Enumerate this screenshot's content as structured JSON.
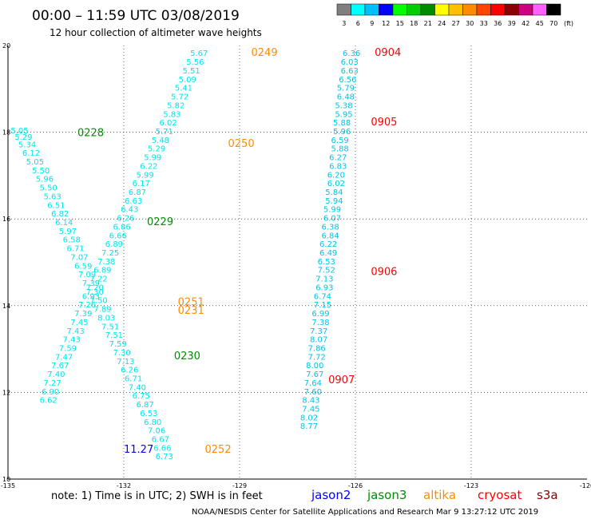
{
  "title": "00:00 – 11:59 UTC 03/08/2019",
  "subtitle": "12 hour collection of altimeter wave heights",
  "note": "note: 1) Time is in UTC; 2) SWH is in feet",
  "footer": "NOAA/NESDIS Center for Satellite Applications and Research    Mar  9 13:27:12 UTC 2019",
  "colorbar": {
    "labels": [
      "3",
      "6",
      "9",
      "12",
      "15",
      "18",
      "21",
      "24",
      "27",
      "30",
      "33",
      "36",
      "39",
      "42",
      "45",
      "70"
    ],
    "unit": "(ft)",
    "colors": [
      "#7f7f7f",
      "#00ffff",
      "#00bfff",
      "#0000ff",
      "#00ff00",
      "#00cd00",
      "#008b00",
      "#ffff00",
      "#ffc000",
      "#ff8c00",
      "#ff4500",
      "#ff0000",
      "#8b0000",
      "#cd0080",
      "#ff60ff",
      "#000000"
    ]
  },
  "satellites": [
    {
      "name": "jason2",
      "color": "#0000ff"
    },
    {
      "name": "jason3",
      "color": "#008b00"
    },
    {
      "name": "altika",
      "color": "#ff8c00"
    },
    {
      "name": "cryosat",
      "color": "#ff0000"
    },
    {
      "name": "s3a",
      "color": "#8b0000"
    }
  ],
  "chart_data": {
    "type": "scatter",
    "x_ticks": [
      "-135",
      "-132",
      "-129",
      "-126",
      "-123",
      "-120"
    ],
    "y_ticks": [
      "10",
      "12",
      "14",
      "16",
      "18",
      "20"
    ],
    "xlim": [
      -135,
      -120
    ],
    "ylim": [
      10,
      20
    ],
    "grid": true,
    "tracks": [
      {
        "color": "#00e5ee",
        "points": [
          [
            -134.7,
            18.05,
            "5.05"
          ],
          [
            -134.6,
            17.9,
            "5.29"
          ],
          [
            -134.5,
            17.73,
            "5.34"
          ],
          [
            -134.4,
            17.53,
            "6.12"
          ],
          [
            -134.3,
            17.33,
            "5.05"
          ],
          [
            -134.15,
            17.13,
            "5.50"
          ],
          [
            -134.05,
            16.93,
            "5.96"
          ],
          [
            -133.95,
            16.73,
            "5.50"
          ],
          [
            -133.85,
            16.53,
            "5.63"
          ],
          [
            -133.75,
            16.33,
            "6.51"
          ],
          [
            -133.65,
            16.13,
            "6.82"
          ],
          [
            -133.55,
            15.93,
            "6.14"
          ],
          [
            -133.45,
            15.73,
            "5.97"
          ],
          [
            -133.35,
            15.53,
            "6.58"
          ],
          [
            -133.25,
            15.33,
            "6.71"
          ],
          [
            -133.15,
            15.13,
            "7.07"
          ],
          [
            -133.05,
            14.93,
            "6.59"
          ],
          [
            -132.95,
            14.73,
            "7.09"
          ],
          [
            -132.85,
            14.53,
            "7.39"
          ],
          [
            -132.75,
            14.33,
            "7.30"
          ],
          [
            -132.65,
            14.13,
            "7.50"
          ],
          [
            -132.55,
            13.93,
            "7.89"
          ],
          [
            -132.45,
            13.73,
            "8.03"
          ],
          [
            -132.35,
            13.53,
            "7.51"
          ],
          [
            -132.25,
            13.33,
            "7.51"
          ],
          [
            -132.15,
            13.13,
            "7.59"
          ],
          [
            -132.05,
            12.93,
            "7.30"
          ],
          [
            -131.95,
            12.73,
            "7.13"
          ],
          [
            -131.85,
            12.53,
            "6.26"
          ],
          [
            -131.75,
            12.33,
            "6.71"
          ],
          [
            -131.65,
            12.13,
            "7.40"
          ],
          [
            -131.55,
            11.93,
            "6.75"
          ],
          [
            -131.45,
            11.73,
            "6.87"
          ],
          [
            -131.35,
            11.53,
            "6.53"
          ],
          [
            -131.25,
            11.33,
            "6.80"
          ],
          [
            -131.15,
            11.13,
            "7.06"
          ],
          [
            -131.05,
            10.93,
            "6.67"
          ],
          [
            -131.0,
            10.73,
            "6.66"
          ],
          [
            -130.95,
            10.53,
            "6.73"
          ]
        ]
      },
      {
        "color": "#00e5ee",
        "points": [
          [
            -130.05,
            19.83,
            "5.67"
          ],
          [
            -130.15,
            19.63,
            "5.56"
          ],
          [
            -130.25,
            19.43,
            "5.51"
          ],
          [
            -130.35,
            19.23,
            "5.09"
          ],
          [
            -130.45,
            19.03,
            "5.41"
          ],
          [
            -130.55,
            18.83,
            "5.72"
          ],
          [
            -130.65,
            18.63,
            "5.82"
          ],
          [
            -130.75,
            18.43,
            "5.83"
          ],
          [
            -130.85,
            18.23,
            "6.02"
          ],
          [
            -130.95,
            18.03,
            "5.71"
          ],
          [
            -131.05,
            17.83,
            "5.48"
          ],
          [
            -131.15,
            17.63,
            "5.29"
          ],
          [
            -131.25,
            17.43,
            "5.99"
          ],
          [
            -131.35,
            17.23,
            "6.22"
          ],
          [
            -131.45,
            17.03,
            "5.99"
          ],
          [
            -131.55,
            16.83,
            "6.17"
          ],
          [
            -131.65,
            16.63,
            "6.87"
          ],
          [
            -131.75,
            16.43,
            "6.63"
          ],
          [
            -131.85,
            16.23,
            "6.43"
          ],
          [
            -131.95,
            16.03,
            "6.26"
          ],
          [
            -132.05,
            15.83,
            "6.86"
          ],
          [
            -132.15,
            15.63,
            "6.66"
          ],
          [
            -132.25,
            15.43,
            "6.89"
          ],
          [
            -132.35,
            15.23,
            "7.25"
          ],
          [
            -132.45,
            15.03,
            "7.38"
          ],
          [
            -132.55,
            14.83,
            "6.89"
          ],
          [
            -132.65,
            14.63,
            "7.22"
          ],
          [
            -132.75,
            14.43,
            "7.20"
          ],
          [
            -132.85,
            14.23,
            "6.93"
          ],
          [
            -132.95,
            14.03,
            "7.26"
          ],
          [
            -133.05,
            13.83,
            "7.39"
          ],
          [
            -133.15,
            13.63,
            "7.45"
          ],
          [
            -133.25,
            13.43,
            "7.43"
          ],
          [
            -133.35,
            13.23,
            "7.43"
          ],
          [
            -133.45,
            13.03,
            "7.59"
          ],
          [
            -133.55,
            12.83,
            "7.47"
          ],
          [
            -133.65,
            12.63,
            "7.67"
          ],
          [
            -133.75,
            12.43,
            "7.40"
          ],
          [
            -133.85,
            12.23,
            "7.27"
          ],
          [
            -133.9,
            12.03,
            "6.90"
          ],
          [
            -133.95,
            11.83,
            "6.62"
          ]
        ]
      },
      {
        "color": "#00c5e8",
        "points": [
          [
            -126.1,
            19.83,
            "6.36"
          ],
          [
            -126.15,
            19.63,
            "6.03"
          ],
          [
            -126.15,
            19.43,
            "6.63"
          ],
          [
            -126.2,
            19.23,
            "6.56"
          ],
          [
            -126.25,
            19.03,
            "5.79"
          ],
          [
            -126.25,
            18.83,
            "6.48"
          ],
          [
            -126.3,
            18.63,
            "5.38"
          ],
          [
            -126.3,
            18.43,
            "5.95"
          ],
          [
            -126.35,
            18.23,
            "5.88"
          ],
          [
            -126.35,
            18.03,
            "5.96"
          ],
          [
            -126.4,
            17.83,
            "6.59"
          ],
          [
            -126.4,
            17.63,
            "5.88"
          ],
          [
            -126.45,
            17.43,
            "6.27"
          ],
          [
            -126.45,
            17.23,
            "6.83"
          ],
          [
            -126.5,
            17.03,
            "6.20"
          ],
          [
            -126.5,
            16.83,
            "6.02"
          ],
          [
            -126.55,
            16.63,
            "5.84"
          ],
          [
            -126.55,
            16.43,
            "5.94"
          ],
          [
            -126.6,
            16.23,
            "5.99"
          ],
          [
            -126.6,
            16.03,
            "6.07"
          ],
          [
            -126.65,
            15.83,
            "6.38"
          ],
          [
            -126.65,
            15.63,
            "6.84"
          ],
          [
            -126.7,
            15.43,
            "6.22"
          ],
          [
            -126.7,
            15.23,
            "6.49"
          ],
          [
            -126.75,
            15.03,
            "6.53"
          ],
          [
            -126.75,
            14.83,
            "7.52"
          ],
          [
            -126.8,
            14.63,
            "7.13"
          ],
          [
            -126.8,
            14.43,
            "6.93"
          ],
          [
            -126.85,
            14.23,
            "6.74"
          ],
          [
            -126.85,
            14.03,
            "7.15"
          ],
          [
            -126.9,
            13.83,
            "6.99"
          ],
          [
            -126.9,
            13.63,
            "7.38"
          ],
          [
            -126.95,
            13.43,
            "7.37"
          ],
          [
            -126.95,
            13.23,
            "8.07"
          ],
          [
            -127.0,
            13.03,
            "7.86"
          ],
          [
            -127.0,
            12.83,
            "7.72"
          ],
          [
            -127.05,
            12.63,
            "8.00"
          ],
          [
            -127.05,
            12.43,
            "7.67"
          ],
          [
            -127.1,
            12.23,
            "7.64"
          ],
          [
            -127.1,
            12.03,
            "7.60"
          ],
          [
            -127.15,
            11.83,
            "8.43"
          ],
          [
            -127.15,
            11.63,
            "7.45"
          ],
          [
            -127.2,
            11.43,
            "8.02"
          ],
          [
            -127.2,
            11.23,
            "8.77"
          ]
        ]
      }
    ],
    "pass_labels": [
      {
        "text": "0228",
        "lon": -133.2,
        "lat": 18.0,
        "color": "#008b00"
      },
      {
        "text": "0229",
        "lon": -131.4,
        "lat": 15.95,
        "color": "#008b00"
      },
      {
        "text": "0230",
        "lon": -130.7,
        "lat": 12.85,
        "color": "#008b00"
      },
      {
        "text": "0249",
        "lon": -128.7,
        "lat": 19.85,
        "color": "#ff8c00"
      },
      {
        "text": "0250",
        "lon": -129.3,
        "lat": 17.75,
        "color": "#ff8c00"
      },
      {
        "text": "0251",
        "lon": -130.6,
        "lat": 14.1,
        "color": "#ff8c00"
      },
      {
        "text": "0231",
        "lon": -130.6,
        "lat": 13.9,
        "color": "#ff8c00"
      },
      {
        "text": "0252",
        "lon": -129.9,
        "lat": 10.7,
        "color": "#ff8c00"
      },
      {
        "text": "0904",
        "lon": -125.5,
        "lat": 19.85,
        "color": "#ff0000"
      },
      {
        "text": "0905",
        "lon": -125.6,
        "lat": 18.25,
        "color": "#ff0000"
      },
      {
        "text": "0906",
        "lon": -125.6,
        "lat": 14.8,
        "color": "#ff0000"
      },
      {
        "text": "0907",
        "lon": -126.7,
        "lat": 12.3,
        "color": "#ff0000"
      },
      {
        "text": "11.27",
        "lon": -132.0,
        "lat": 10.7,
        "color": "#0000ff"
      }
    ]
  }
}
